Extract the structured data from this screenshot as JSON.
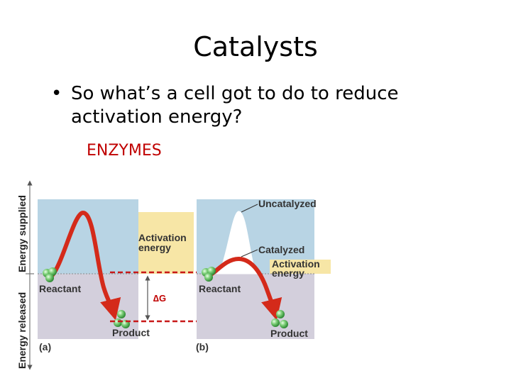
{
  "slide": {
    "title": "Catalysts",
    "bullet": "So what’s a cell got to do to reduce activation energy?",
    "answer": "ENZYMES"
  },
  "diagram": {
    "axis_up": "Energy supplied",
    "axis_down": "Energy released",
    "panel_a": {
      "label": "(a)",
      "reactant": "Reactant",
      "product": "Product",
      "activation_1": "Activation",
      "activation_2": "energy",
      "delta_g": "∆G"
    },
    "panel_b": {
      "label": "(b)",
      "uncatalyzed": "Uncatalyzed",
      "catalyzed": "Catalyzed",
      "activation_1": "Activation",
      "activation_2": "energy",
      "reactant": "Reactant",
      "product": "Product"
    },
    "colors": {
      "supplied": "#b8d4e4",
      "released": "#d3cfdc",
      "activation": "#f7e6a6",
      "curve": "#d42a1a",
      "dashed": "#c81818",
      "molecule": "#4caf50"
    }
  }
}
